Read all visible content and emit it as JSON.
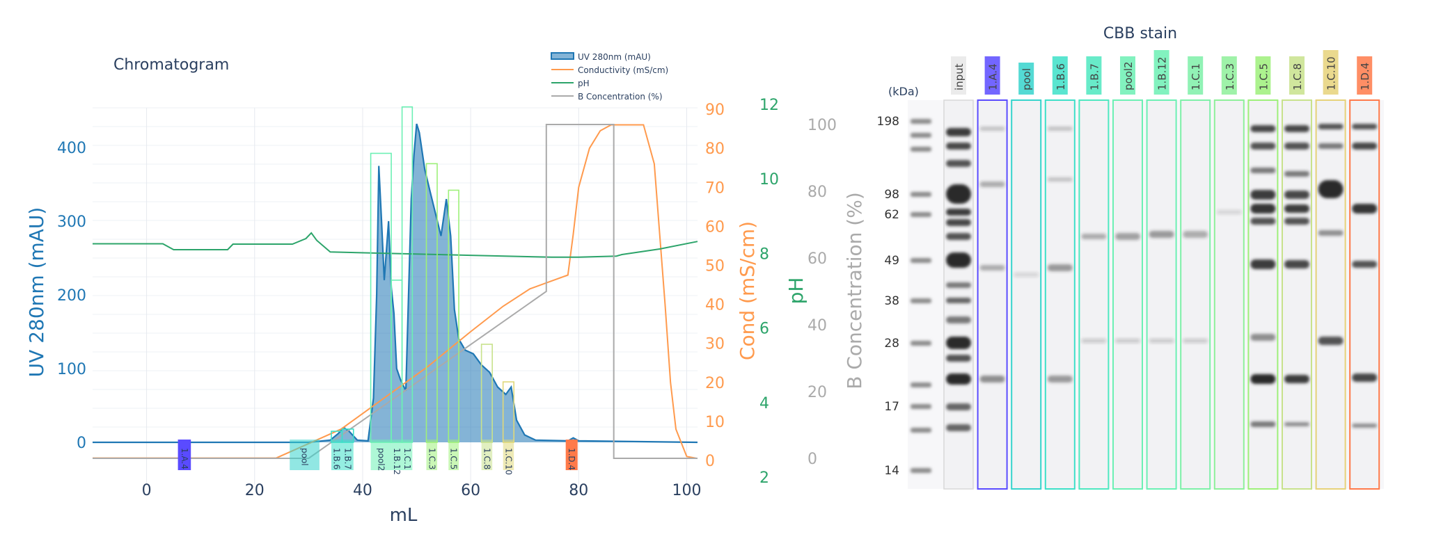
{
  "chromatogram": {
    "title": "Chromatogram",
    "legend": [
      {
        "label": "UV 280nm (mAU)",
        "color": "#1f77b4",
        "kind": "area"
      },
      {
        "label": "Conductivity (mS/cm)",
        "color": "#ff9a4d",
        "kind": "line"
      },
      {
        "label": "pH",
        "color": "#2ca46a",
        "kind": "line"
      },
      {
        "label": "B Concentration (%)",
        "color": "#aaaaaa",
        "kind": "line"
      }
    ],
    "colors": {
      "uv": "#1f77b4",
      "uv_fill": "rgba(31,119,180,0.55)",
      "cond": "#ff9a4d",
      "ph": "#2ca46a",
      "conc": "#aaaaaa"
    }
  },
  "chart_data": [
    {
      "type": "line",
      "title": "Chromatogram",
      "xlabel": "mL",
      "xlim": [
        -10,
        102
      ],
      "xticks": [
        "0",
        "20",
        "40",
        "60",
        "80",
        "100"
      ],
      "xtick_values": [
        0,
        20,
        40,
        60,
        80,
        100
      ],
      "y_axes": [
        {
          "label": "UV 280nm (mAU)",
          "range": [
            -22,
            450
          ],
          "ticks": [
            "0",
            "100",
            "200",
            "300",
            "400"
          ],
          "tick_values": [
            0,
            100,
            200,
            300,
            400
          ],
          "color": "#1f77b4"
        },
        {
          "label": "Cond (mS/cm)",
          "range": [
            0,
            92
          ],
          "ticks": [
            "0",
            "10",
            "20",
            "30",
            "40",
            "50",
            "60",
            "70",
            "80",
            "90"
          ],
          "tick_values": [
            0,
            10,
            20,
            30,
            40,
            50,
            60,
            70,
            80,
            90
          ],
          "color": "#ff9a4d"
        },
        {
          "label": "pH",
          "range": [
            2,
            12
          ],
          "ticks": [
            "2",
            "4",
            "6",
            "8",
            "10",
            "12"
          ],
          "tick_values": [
            2,
            4,
            6,
            8,
            10,
            12
          ],
          "color": "#2ca46a"
        },
        {
          "label": "B Concentration (%)",
          "range": [
            0,
            100
          ],
          "ticks": [
            "0",
            "20",
            "40",
            "60",
            "80",
            "100"
          ],
          "tick_values": [
            0,
            20,
            40,
            60,
            80,
            100
          ],
          "color": "#aaaaaa"
        }
      ],
      "grid": true,
      "legend_position": "top-right",
      "series": [
        {
          "name": "UV 280nm (mAU)",
          "axis": 0,
          "x": [
            -10,
            30,
            34,
            35.5,
            36.5,
            37.5,
            39,
            41,
            42,
            42.6,
            43,
            43.5,
            44,
            44.8,
            45.3,
            45.8,
            46.3,
            47,
            48,
            49,
            49.5,
            50,
            50.5,
            51.5,
            52.5,
            53.5,
            54.5,
            55.5,
            56.3,
            57,
            57.8,
            59,
            60.5,
            62,
            63.5,
            65,
            66.5,
            67.5,
            68.5,
            70,
            72,
            78,
            79,
            80,
            102
          ],
          "y": [
            0,
            0,
            3,
            12,
            20,
            15,
            3,
            2,
            60,
            200,
            375,
            300,
            220,
            300,
            210,
            175,
            100,
            85,
            70,
            330,
            390,
            432,
            420,
            370,
            340,
            310,
            280,
            330,
            280,
            180,
            140,
            125,
            120,
            105,
            95,
            75,
            65,
            75,
            30,
            10,
            3,
            2,
            6,
            2,
            0
          ]
        },
        {
          "name": "Conductivity (mS/cm)",
          "axis": 1,
          "x": [
            -10,
            24,
            36,
            44,
            52,
            60,
            66,
            71,
            75,
            78,
            79,
            80,
            82,
            84,
            86,
            90,
            92,
            94,
            96,
            97,
            98,
            100,
            102
          ],
          "y": [
            0.6,
            0.6,
            8,
            16,
            24,
            33,
            39.5,
            44,
            46,
            47.5,
            58,
            70,
            80,
            84.5,
            86,
            86,
            86,
            76,
            40,
            20,
            8,
            1,
            0.5
          ]
        },
        {
          "name": "pH",
          "axis": 2,
          "x": [
            -10,
            3,
            5,
            15,
            16,
            27,
            29.5,
            30.5,
            31.5,
            34,
            45,
            60,
            75,
            80,
            87,
            88,
            95,
            102
          ],
          "y": [
            8.26,
            8.26,
            8.1,
            8.1,
            8.25,
            8.25,
            8.4,
            8.55,
            8.35,
            8.04,
            8.0,
            7.95,
            7.9,
            7.9,
            7.93,
            7.97,
            8.12,
            8.32
          ]
        },
        {
          "name": "B Concentration (%)",
          "axis": 3,
          "x": [
            -10,
            30,
            74,
            74,
            86.5,
            86.5,
            102
          ],
          "y": [
            0,
            0,
            50,
            100,
            100,
            0,
            0
          ]
        }
      ],
      "fractions": [
        {
          "label": "1.A.4",
          "x0": 5.8,
          "x1": 8.2,
          "color": "#5a4bff",
          "filled": true,
          "top": 0
        },
        {
          "label": "pool",
          "x0": 26.5,
          "x1": 32.0,
          "color": "#36d4cc",
          "filled": false,
          "top": 0
        },
        {
          "label": "1.B.6",
          "x0": 34.2,
          "x1": 36.2,
          "color": "#3de0c8",
          "filled": false,
          "top": 15
        },
        {
          "label": "1.B.7",
          "x0": 36.2,
          "x1": 38.3,
          "color": "#3de0c8",
          "filled": false,
          "top": 18
        },
        {
          "label": "pool2",
          "x0": 41.5,
          "x1": 45.3,
          "color": "#6cf0b4",
          "filled": false,
          "top": 392
        },
        {
          "label": "1.B.12",
          "x0": 45.3,
          "x1": 47.3,
          "color": "#6cf0b4",
          "filled": false,
          "top": 220
        },
        {
          "label": "1.C.1",
          "x0": 47.3,
          "x1": 49.2,
          "color": "#6cf0b4",
          "filled": false,
          "top": 455
        },
        {
          "label": "1.C.3",
          "x0": 51.8,
          "x1": 53.8,
          "color": "#9ef07a",
          "filled": false,
          "top": 378
        },
        {
          "label": "1.C.5",
          "x0": 55.9,
          "x1": 57.8,
          "color": "#9ef07a",
          "filled": false,
          "top": 342
        },
        {
          "label": "1.C.8",
          "x0": 62.0,
          "x1": 64.0,
          "color": "#c8e28c",
          "filled": false,
          "top": 133
        },
        {
          "label": "1.C.10",
          "x0": 66.0,
          "x1": 68.0,
          "color": "#e0d87a",
          "filled": false,
          "top": 82
        },
        {
          "label": "1.D.4",
          "x0": 77.6,
          "x1": 79.8,
          "color": "#ff7a4a",
          "filled": true,
          "top": 8
        }
      ]
    },
    {
      "type": "gel",
      "title": "CBB stain",
      "ylabel": "(kDa)",
      "markers": [
        {
          "label": "198",
          "kda": 198
        },
        {
          "label": "98",
          "kda": 98
        },
        {
          "label": "62",
          "kda": 62
        },
        {
          "label": "49",
          "kda": 49
        },
        {
          "label": "38",
          "kda": 38
        },
        {
          "label": "28",
          "kda": 28
        },
        {
          "label": "17",
          "kda": 17
        },
        {
          "label": "14",
          "kda": 14
        }
      ],
      "lanes": [
        {
          "label": "input",
          "color": "#e8e8e8",
          "boxed": false
        },
        {
          "label": "1.A.4",
          "color": "#5a4bff",
          "boxed": true
        },
        {
          "label": "pool",
          "color": "#36d4cc",
          "boxed": true
        },
        {
          "label": "1.B.6",
          "color": "#3de0c8",
          "boxed": true
        },
        {
          "label": "1.B.7",
          "color": "#4ee8c0",
          "boxed": true
        },
        {
          "label": "pool2",
          "color": "#6cf0b4",
          "boxed": true
        },
        {
          "label": "1.B.12",
          "color": "#6cf0b4",
          "boxed": true
        },
        {
          "label": "1.C.1",
          "color": "#7ef0a8",
          "boxed": true
        },
        {
          "label": "1.C.3",
          "color": "#8ef09a",
          "boxed": true
        },
        {
          "label": "1.C.5",
          "color": "#9ef07a",
          "boxed": true
        },
        {
          "label": "1.C.8",
          "color": "#c8e28c",
          "boxed": true
        },
        {
          "label": "1.C.10",
          "color": "#e6d27a",
          "boxed": true
        },
        {
          "label": "1.D.4",
          "color": "#ff7a4a",
          "boxed": true
        }
      ]
    }
  ]
}
